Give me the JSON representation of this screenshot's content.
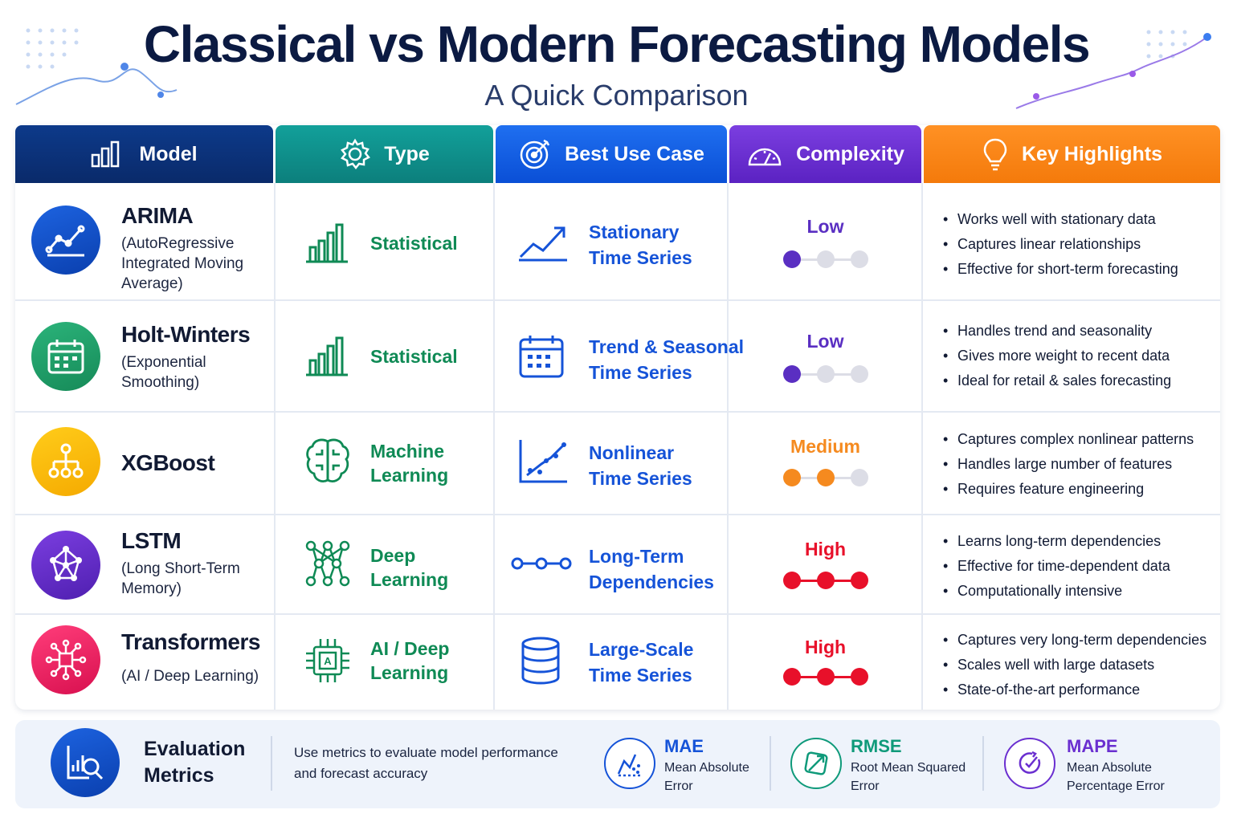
{
  "title": "Classical vs Modern Forecasting Models",
  "subtitle": "A Quick Comparison",
  "headers": {
    "model": "Model",
    "type": "Type",
    "use_case": "Best Use Case",
    "complexity": "Complexity",
    "highlights": "Key Highlights"
  },
  "colors": {
    "low": "#5a2fc2",
    "medium": "#f58a1f",
    "high": "#e8102a"
  },
  "rows": [
    {
      "name": "ARIMA",
      "sub": "(AutoRegressive Integrated Moving Average)",
      "icon": "line-chart-icon",
      "type": "Statistical",
      "type_icon": "bar-chart-icon",
      "use_case_1": "Stationary",
      "use_case_2": "Time Series",
      "use_icon": "trend-up-icon",
      "complexity": "Low",
      "complexity_level": 1,
      "highlights": [
        "Works well with stationary data",
        "Captures linear relationships",
        "Effective for short-term forecasting"
      ]
    },
    {
      "name": "Holt-Winters",
      "sub": "(Exponential Smoothing)",
      "icon": "calendar-icon",
      "type": "Statistical",
      "type_icon": "bar-chart-icon",
      "use_case_1": "Trend & Seasonal",
      "use_case_2": "Time Series",
      "use_icon": "calendar-icon",
      "complexity": "Low",
      "complexity_level": 1,
      "highlights": [
        "Handles trend and seasonality",
        "Gives more weight to recent data",
        "Ideal for retail & sales forecasting"
      ]
    },
    {
      "name": "XGBoost",
      "sub": "",
      "icon": "tree-icon",
      "type_1": "Machine",
      "type_2": "Learning",
      "type_icon": "brain-icon",
      "use_case_1": "Nonlinear",
      "use_case_2": "Time Series",
      "use_icon": "scatter-chart-icon",
      "complexity": "Medium",
      "complexity_level": 2,
      "highlights": [
        "Captures complex nonlinear patterns",
        "Handles large number of features",
        "Requires feature engineering"
      ]
    },
    {
      "name": "LSTM",
      "sub": "(Long Short-Term Memory)",
      "icon": "network-icon",
      "type_1": "Deep",
      "type_2": "Learning",
      "type_icon": "neural-network-icon",
      "use_case_1": "Long-Term",
      "use_case_2": "Dependencies",
      "use_icon": "chain-nodes-icon",
      "complexity": "High",
      "complexity_level": 3,
      "highlights": [
        "Learns long-term dependencies",
        "Effective for time-dependent data",
        "Computationally intensive"
      ]
    },
    {
      "name": "Transformers",
      "sub": "(AI / Deep Learning)",
      "icon": "circuit-icon",
      "type_1": "AI / Deep",
      "type_2": "Learning",
      "type_icon": "ai-chip-icon",
      "use_case_1": "Large-Scale",
      "use_case_2": "Time Series",
      "use_icon": "database-icon",
      "complexity": "High",
      "complexity_level": 3,
      "highlights": [
        "Captures very long-term dependencies",
        "Scales well with large datasets",
        "State-of-the-art performance"
      ]
    }
  ],
  "footer": {
    "title": "Evaluation Metrics",
    "description": "Use metrics to evaluate model performance and forecast accuracy",
    "metrics": [
      {
        "name": "MAE",
        "desc": "Mean Absolute Error",
        "color": "#1553d8"
      },
      {
        "name": "RMSE",
        "desc": "Root Mean Squared Error",
        "color": "#0f9a7a"
      },
      {
        "name": "MAPE",
        "desc": "Mean Absolute Percentage Error",
        "color": "#6a2fd0"
      }
    ]
  }
}
